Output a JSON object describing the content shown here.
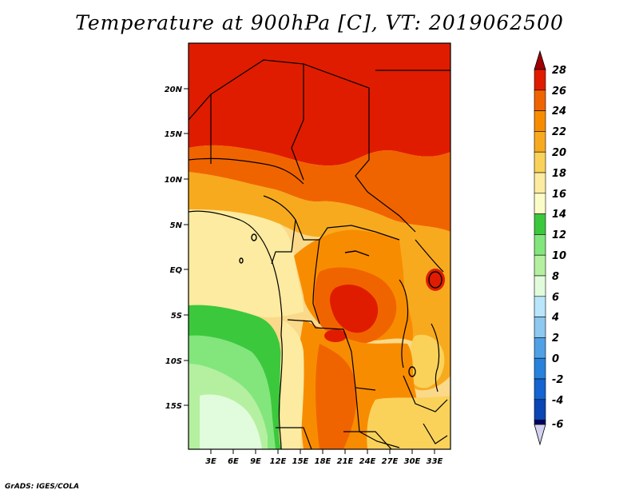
{
  "title": "Temperature at 900hPa [C], VT: 2019062500",
  "credit": "GrADS: IGES/COLA",
  "map": {
    "lon_range": [
      0,
      35
    ],
    "lat_range": [
      -20,
      25
    ],
    "lat_ticks": [
      "20N",
      "15N",
      "10N",
      "5N",
      "EQ",
      "5S",
      "10S",
      "15S"
    ],
    "lon_ticks": [
      "3E",
      "6E",
      "9E",
      "12E",
      "15E",
      "18E",
      "21E",
      "24E",
      "27E",
      "30E",
      "33E"
    ]
  },
  "colorbar": {
    "labels": [
      "28",
      "26",
      "24",
      "22",
      "20",
      "18",
      "16",
      "14",
      "12",
      "10",
      "8",
      "6",
      "4",
      "2",
      "0",
      "-2",
      "-4",
      "-6"
    ],
    "colors": [
      "#a00000",
      "#e01c00",
      "#f06400",
      "#f88c00",
      "#f8aa1e",
      "#fad25a",
      "#fceba0",
      "#fcfcc8",
      "#3cc83c",
      "#82e67c",
      "#b4f0a0",
      "#e1fcdc",
      "#b9e6fa",
      "#8cc8f0",
      "#50a0e6",
      "#2882dc",
      "#1464d2",
      "#0a46b4",
      "#000064",
      "#d2d2f0"
    ]
  }
}
